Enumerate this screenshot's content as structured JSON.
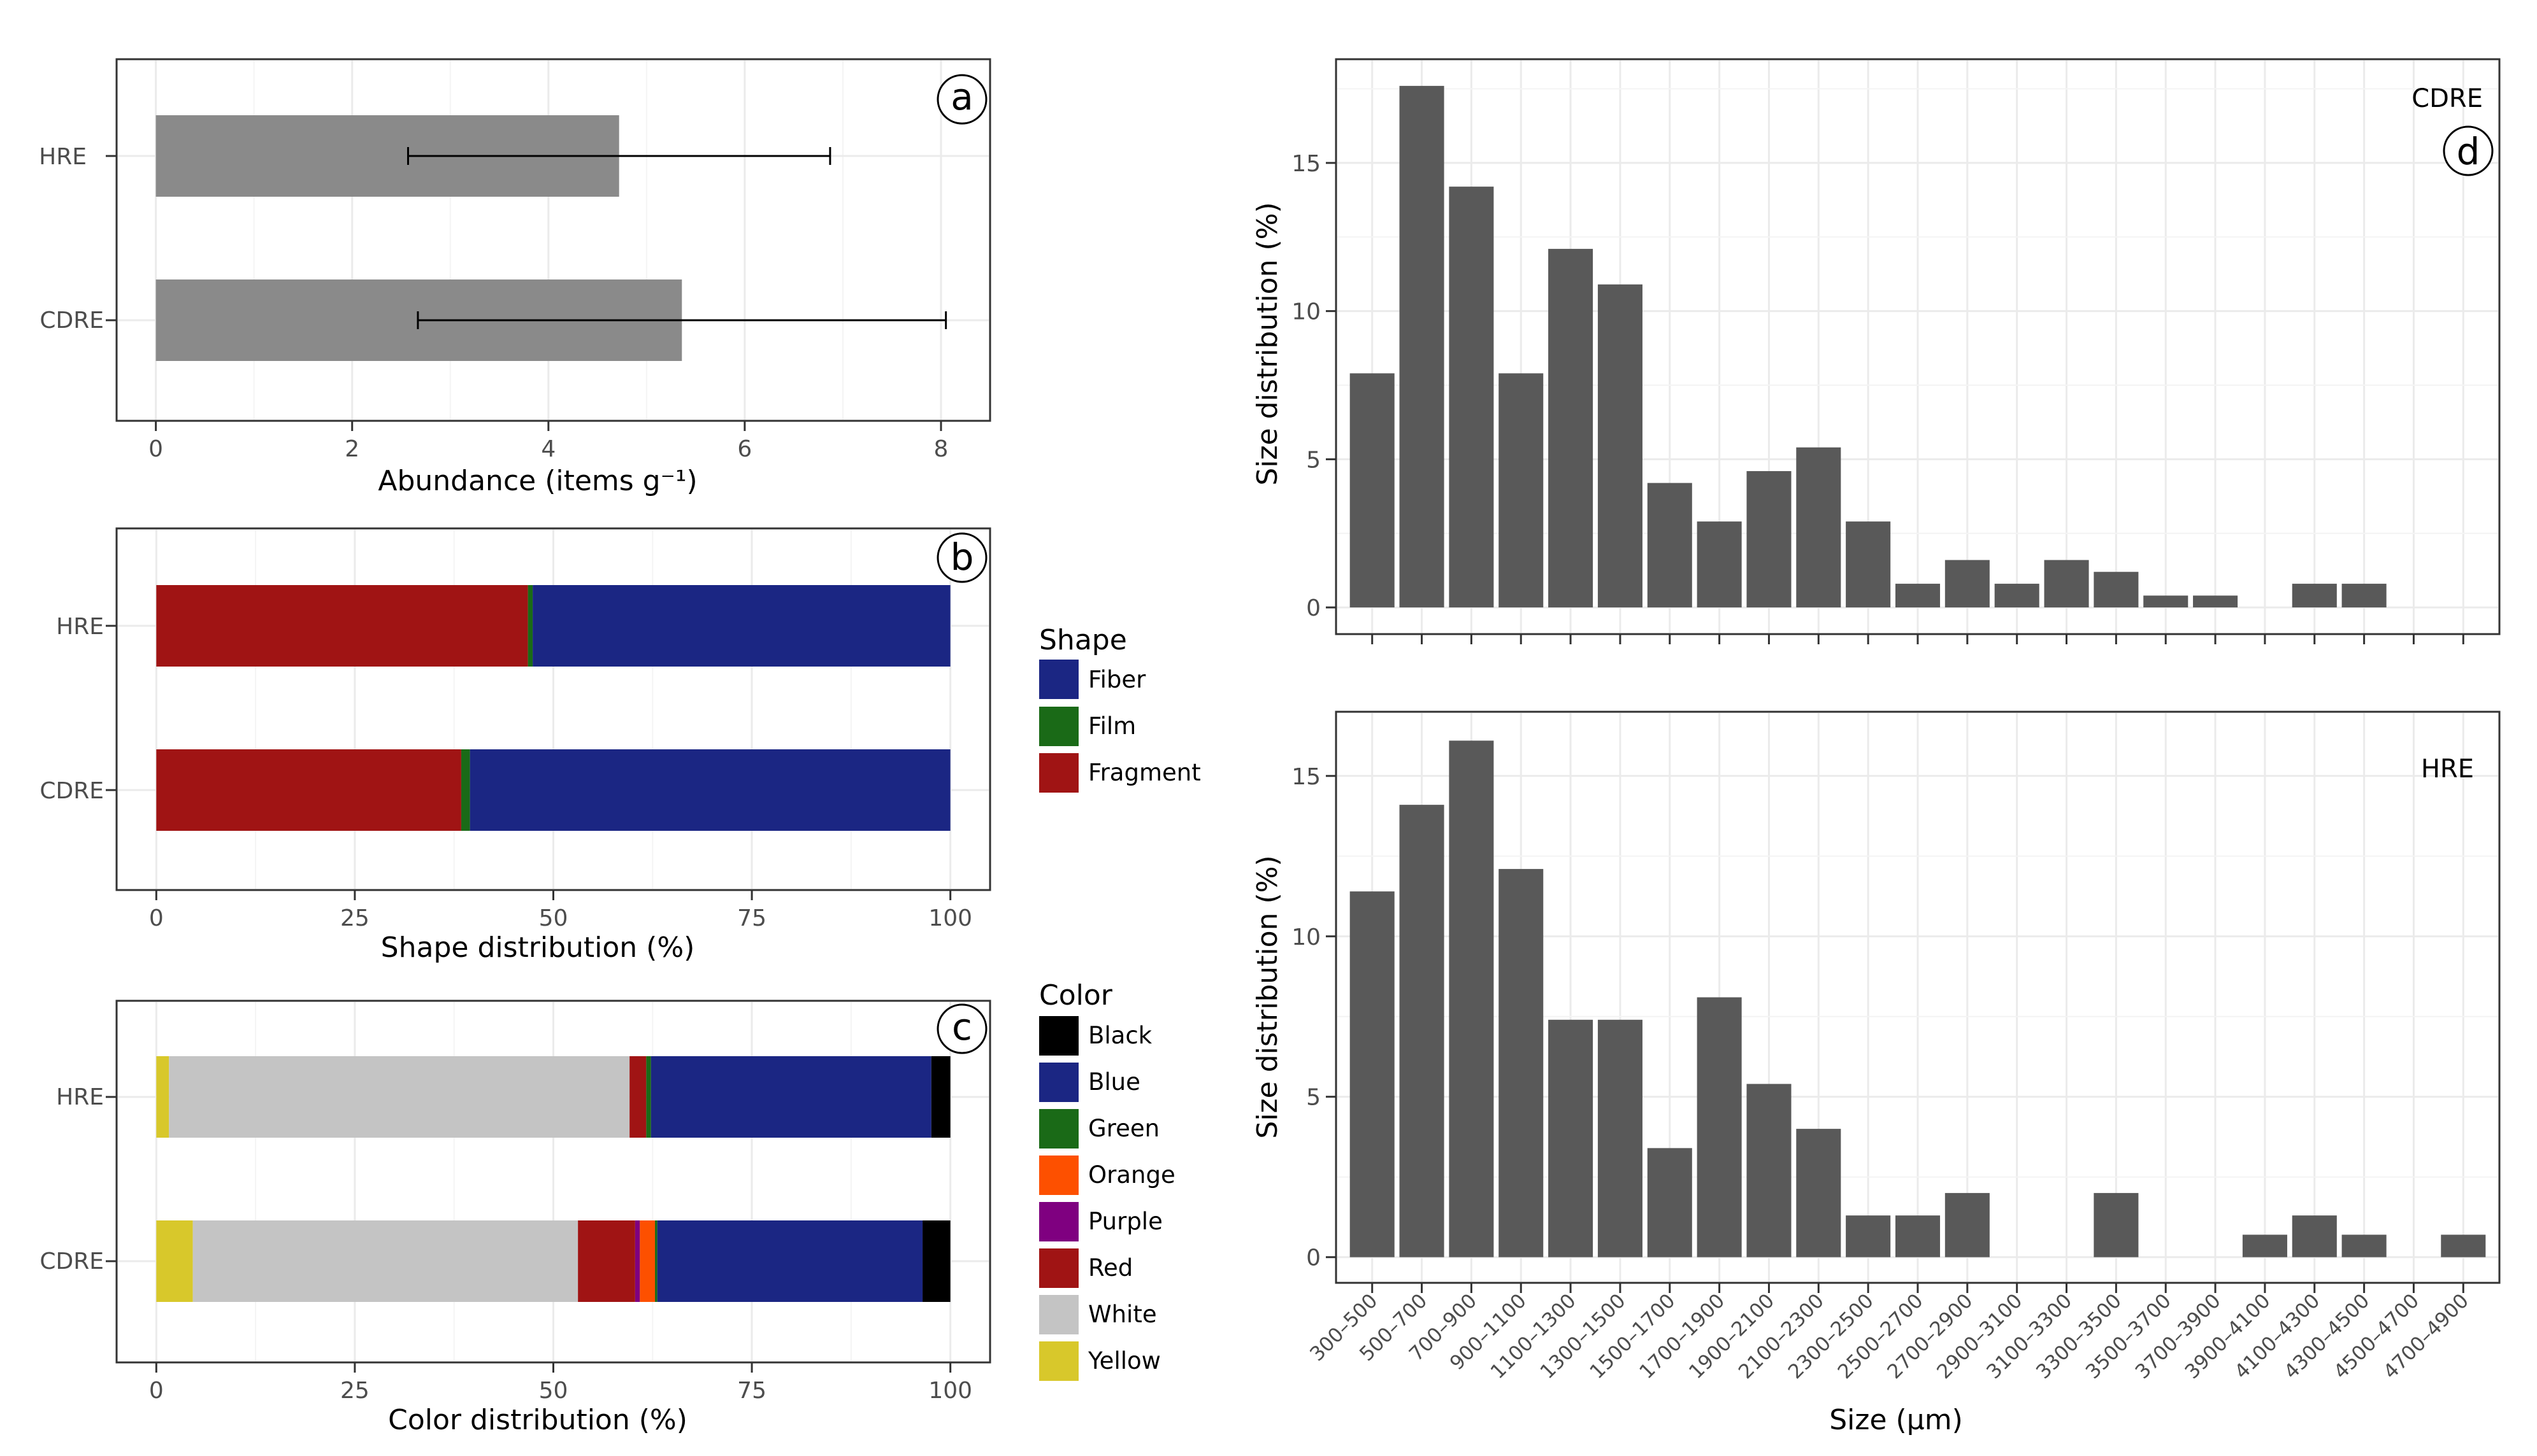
{
  "colors": {
    "bar_gray": "#8a8a8a",
    "hist_gray": "#595959",
    "Fiber": "#1b2683",
    "Film": "#1a6a17",
    "Fragment": "#a01414",
    "Black": "#000000",
    "Blue": "#1b2683",
    "Green": "#1a6a17",
    "Orange": "#fd5000",
    "Purple": "#7f0080",
    "Red": "#a01414",
    "White": "#c4c4c4",
    "Yellow": "#d8c82b"
  },
  "legend_shape": {
    "title": "Shape",
    "items": [
      "Fiber",
      "Film",
      "Fragment"
    ]
  },
  "legend_color": {
    "title": "Color",
    "items": [
      "Black",
      "Blue",
      "Green",
      "Orange",
      "Purple",
      "Red",
      "White",
      "Yellow"
    ]
  },
  "chart_data": [
    {
      "id": "a",
      "panel_label": "a",
      "type": "bar",
      "orientation": "horizontal",
      "categories": [
        "HRE",
        "CDRE"
      ],
      "values": [
        4.72,
        5.36
      ],
      "error_low": [
        2.57,
        2.67
      ],
      "error_high": [
        6.87,
        8.05
      ],
      "xlabel": "Abundance (items g⁻¹)",
      "xlim": [
        -0.4,
        8.5
      ],
      "xticks": [
        "0",
        "2",
        "4",
        "6",
        "8"
      ]
    },
    {
      "id": "b",
      "panel_label": "b",
      "type": "bar",
      "orientation": "horizontal",
      "stacked": true,
      "categories": [
        "HRE",
        "CDRE"
      ],
      "series": [
        {
          "name": "Fragment",
          "values": [
            46.8,
            38.4
          ]
        },
        {
          "name": "Film",
          "values": [
            0.6,
            1.1
          ]
        },
        {
          "name": "Fiber",
          "values": [
            52.6,
            60.5
          ]
        }
      ],
      "xlabel": "Shape distribution (%)",
      "xlim": [
        -5,
        105
      ],
      "xticks": [
        "0",
        "25",
        "50",
        "75",
        "100"
      ]
    },
    {
      "id": "c",
      "panel_label": "c",
      "type": "bar",
      "orientation": "horizontal",
      "stacked": true,
      "categories": [
        "HRE",
        "CDRE"
      ],
      "series": [
        {
          "name": "Yellow",
          "values": [
            1.6,
            4.6
          ]
        },
        {
          "name": "White",
          "values": [
            58.0,
            48.5
          ]
        },
        {
          "name": "Red",
          "values": [
            2.1,
            7.2
          ]
        },
        {
          "name": "Purple",
          "values": [
            0.0,
            0.6
          ]
        },
        {
          "name": "Orange",
          "values": [
            0.0,
            1.9
          ]
        },
        {
          "name": "Green",
          "values": [
            0.6,
            0.3
          ]
        },
        {
          "name": "Blue",
          "values": [
            35.3,
            33.4
          ]
        },
        {
          "name": "Black",
          "values": [
            2.4,
            3.5
          ]
        }
      ],
      "xlabel": "Color distribution (%)",
      "xlim": [
        -5,
        105
      ],
      "xticks": [
        "0",
        "25",
        "50",
        "75",
        "100"
      ]
    },
    {
      "id": "d_cdre",
      "panel_label": "d",
      "title": "CDRE",
      "type": "bar",
      "categories": [
        "300–500",
        "500–700",
        "700–900",
        "900–1100",
        "1100–1300",
        "1300–1500",
        "1500–1700",
        "1700–1900",
        "1900–2100",
        "2100–2300",
        "2300–2500",
        "2500–2700",
        "2700–2900",
        "2900–3100",
        "3100–3300",
        "3300–3500",
        "3500–3700",
        "3700–3900",
        "3900–4100",
        "4100–4300",
        "4300–4500",
        "4500–4700",
        "4700–4900"
      ],
      "values": [
        7.9,
        17.6,
        14.2,
        7.9,
        12.1,
        10.9,
        4.2,
        2.9,
        4.6,
        5.4,
        2.9,
        0.8,
        1.6,
        0.8,
        1.6,
        1.2,
        0.4,
        0.4,
        0,
        0.8,
        0.8,
        0,
        0
      ],
      "ylabel": "Size distribution (%)",
      "ylim": [
        -0.9,
        18.5
      ],
      "yticks": [
        "0",
        "5",
        "10",
        "15"
      ]
    },
    {
      "id": "d_hre",
      "title": "HRE",
      "type": "bar",
      "categories": [
        "300–500",
        "500–700",
        "700–900",
        "900–1100",
        "1100–1300",
        "1300–1500",
        "1500–1700",
        "1700–1900",
        "1900–2100",
        "2100–2300",
        "2300–2500",
        "2500–2700",
        "2700–2900",
        "2900–3100",
        "3100–3300",
        "3300–3500",
        "3500–3700",
        "3700–3900",
        "3900–4100",
        "4100–4300",
        "4300–4500",
        "4500–4700",
        "4700–4900"
      ],
      "values": [
        11.4,
        14.1,
        16.1,
        12.1,
        7.4,
        7.4,
        3.4,
        8.1,
        5.4,
        4.0,
        1.3,
        1.3,
        2.0,
        0,
        0,
        2.0,
        0,
        0,
        0.7,
        1.3,
        0.7,
        0,
        0.7
      ],
      "ylabel": "Size distribution (%)",
      "xlabel": "Size (μm)",
      "ylim": [
        -0.8,
        17.0
      ],
      "yticks": [
        "0",
        "5",
        "10",
        "15"
      ]
    }
  ]
}
